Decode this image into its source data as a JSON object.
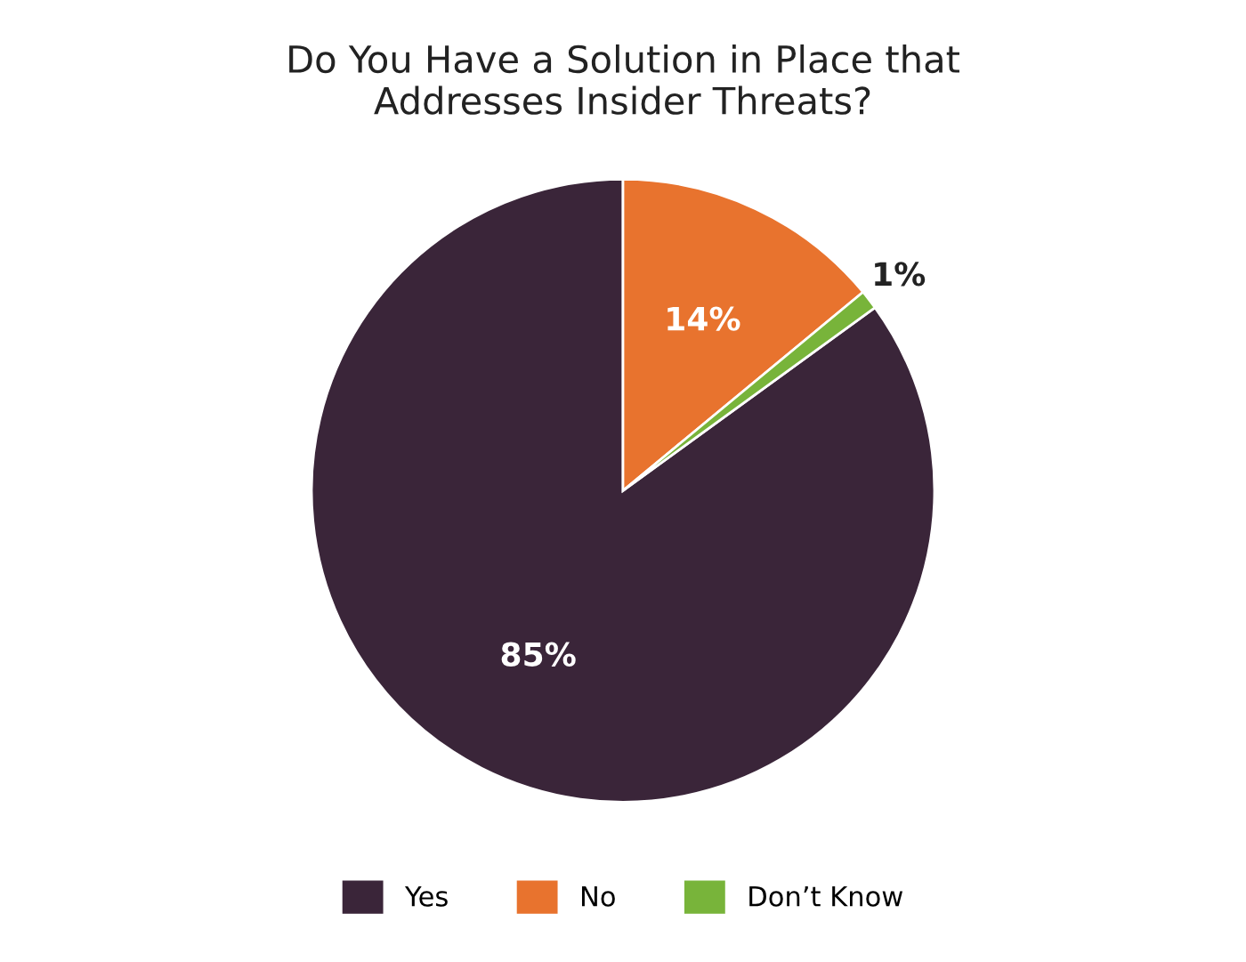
{
  "chart_data": {
    "type": "pie",
    "title": "Do You Have a Solution in Place that\nAddresses Insider Threats?",
    "categories": [
      "Yes",
      "No",
      "Don’t Know"
    ],
    "values": [
      85,
      14,
      1
    ],
    "colors": [
      "#3a2539",
      "#e8732e",
      "#78b43a"
    ],
    "value_labels": [
      "85%",
      "14%",
      "1%"
    ],
    "legend": "bottom"
  }
}
